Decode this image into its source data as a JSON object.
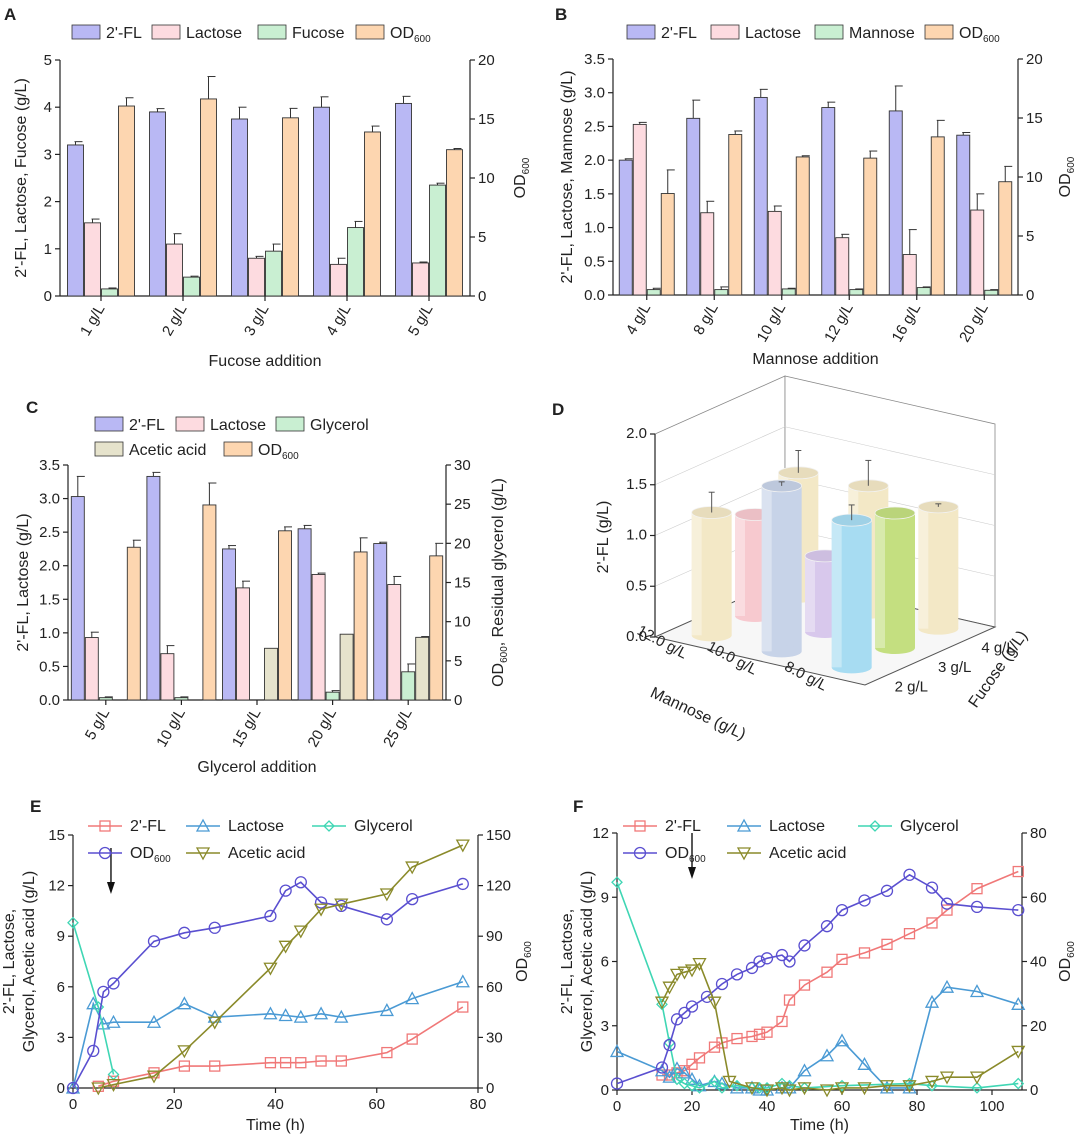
{
  "chart_data": [
    {
      "panel": "A",
      "type": "bar",
      "categories": [
        "1 g/L",
        "2 g/L",
        "3 g/L",
        "4 g/L",
        "5 g/L"
      ],
      "xlabel": "Fucose addition",
      "ylabel": "2'-FL, Lactose, Fucose (g/L)",
      "ylabel_right_main": "OD",
      "ylabel_right_sub": "600",
      "ylim": [
        0,
        5
      ],
      "yticks": [
        0,
        1,
        2,
        3,
        4,
        5
      ],
      "y2lim": [
        0,
        20
      ],
      "y2ticks": [
        0,
        5,
        10,
        15,
        20
      ],
      "series": [
        {
          "name": "2'-FL",
          "color": "#b9b8f4",
          "axis": "left",
          "values": [
            3.2,
            3.9,
            3.75,
            4.0,
            4.08
          ],
          "errors": [
            0.07,
            0.07,
            0.25,
            0.22,
            0.15
          ]
        },
        {
          "name": "Lactose",
          "color": "#fddbe0",
          "axis": "left",
          "values": [
            1.55,
            1.1,
            0.8,
            0.67,
            0.7
          ],
          "errors": [
            0.08,
            0.22,
            0.04,
            0.13,
            0.02
          ]
        },
        {
          "name": "Fucose",
          "color": "#c9efd2",
          "axis": "left",
          "values": [
            0.15,
            0.4,
            0.95,
            1.45,
            2.35
          ],
          "errors": [
            0.02,
            0.02,
            0.15,
            0.13,
            0.04
          ]
        },
        {
          "name": "OD",
          "sub": "600",
          "color": "#fdd6b0",
          "axis": "right",
          "values": [
            16.1,
            16.7,
            15.1,
            13.9,
            12.4
          ],
          "errors": [
            0.7,
            1.9,
            0.8,
            0.5,
            0.1
          ]
        }
      ]
    },
    {
      "panel": "B",
      "type": "bar",
      "categories": [
        "4 g/L",
        "8 g/L",
        "10 g/L",
        "12 g/L",
        "16 g/L",
        "20 g/L"
      ],
      "xlabel": "Mannose addition",
      "ylabel": "2'-FL, Lactose, Mannose (g/L)",
      "ylabel_right_main": "OD",
      "ylabel_right_sub": "600",
      "ylim": [
        0,
        3.5
      ],
      "yticks": [
        "0.0",
        "0.5",
        "1.0",
        "1.5",
        "2.0",
        "2.5",
        "3.0",
        "3.5"
      ],
      "y2lim": [
        0,
        20
      ],
      "y2ticks": [
        0,
        5,
        10,
        15,
        20
      ],
      "series": [
        {
          "name": "2'-FL",
          "color": "#b9b8f4",
          "axis": "left",
          "values": [
            2.0,
            2.62,
            2.93,
            2.78,
            2.73,
            2.37
          ],
          "errors": [
            0.02,
            0.27,
            0.12,
            0.08,
            0.37,
            0.04
          ]
        },
        {
          "name": "Lactose",
          "color": "#fddbe0",
          "axis": "left",
          "values": [
            2.53,
            1.22,
            1.24,
            0.85,
            0.6,
            1.26
          ],
          "errors": [
            0.03,
            0.17,
            0.08,
            0.05,
            0.37,
            0.24
          ]
        },
        {
          "name": "Mannose",
          "color": "#c9efd2",
          "axis": "left",
          "values": [
            0.08,
            0.08,
            0.09,
            0.08,
            0.11,
            0.07
          ],
          "errors": [
            0.02,
            0.04,
            0.01,
            0.01,
            0.01,
            0.01
          ]
        },
        {
          "name": "OD",
          "sub": "600",
          "color": "#fdd6b0",
          "axis": "right",
          "values": [
            8.6,
            13.6,
            11.7,
            11.6,
            13.4,
            9.6
          ],
          "errors": [
            2.0,
            0.3,
            0.1,
            0.6,
            1.4,
            1.3
          ]
        }
      ]
    },
    {
      "panel": "C",
      "type": "bar",
      "categories": [
        "5 g/L",
        "10 g/L",
        "15 g/L",
        "20 g/L",
        "25 g/L"
      ],
      "xlabel": "Glycerol addition",
      "ylabel": "2'-FL, Lactose (g/L)",
      "ylabel_right": "OD600, Residual glycerol (g/L)",
      "ylabel_right_main": "Residual glycerol (g/L)",
      "ylabel_right_od": "OD",
      "ylabel_right_sub": "600",
      "ylabel_right_comma": ",",
      "ylim": [
        0,
        3.5
      ],
      "yticks": [
        "0.0",
        "0.5",
        "1.0",
        "1.5",
        "2.0",
        "2.5",
        "3.0",
        "3.5"
      ],
      "y2lim": [
        0,
        30
      ],
      "y2ticks": [
        0,
        5,
        10,
        15,
        20,
        25,
        30
      ],
      "series": [
        {
          "name": "2'-FL",
          "color": "#b9b8f4",
          "axis": "left",
          "values": [
            3.03,
            3.33,
            2.25,
            2.55,
            2.33
          ],
          "errors": [
            0.3,
            0.06,
            0.05,
            0.05,
            0.02
          ]
        },
        {
          "name": "Lactose",
          "color": "#fddbe0",
          "axis": "left",
          "values": [
            0.93,
            0.69,
            1.67,
            1.87,
            1.72
          ],
          "errors": [
            0.08,
            0.12,
            0.1,
            0.02,
            0.12
          ]
        },
        {
          "name": "Glycerol",
          "color": "#c9efd2",
          "axis": "right",
          "values": [
            0.3,
            0.3,
            0,
            1.0,
            3.6
          ],
          "errors": [
            0.1,
            0.1,
            0,
            0.2,
            1.0
          ]
        },
        {
          "name": "Acetic acid",
          "color": "#e6e3cc",
          "axis": "right",
          "values": [
            0,
            0,
            6.6,
            8.4,
            8.0
          ],
          "errors": [
            0,
            0,
            0,
            0,
            0.1
          ]
        },
        {
          "name": "OD",
          "sub": "600",
          "color": "#fdd6b0",
          "axis": "right",
          "values": [
            19.5,
            24.9,
            21.6,
            18.9,
            18.4
          ],
          "errors": [
            0.9,
            2.8,
            0.5,
            1.8,
            1.6
          ]
        }
      ]
    },
    {
      "panel": "D",
      "type": "bar3d",
      "zlabel": "2'-FL (g/L)",
      "zticks": [
        "0.0",
        "0.5",
        "1.0",
        "1.5",
        "2.0"
      ],
      "mannose_label": "Mannose (g/L)",
      "mannose_ticks": [
        "12.0 g/L",
        "10.0 g/L",
        "8.0 g/L"
      ],
      "fucose_label": "Fucose (g/L)",
      "fucose_ticks": [
        "2 g/L",
        "3 g/L",
        "4 g/L"
      ],
      "bars": [
        {
          "mannose": "12.0 g/L",
          "fucose": "4 g/L",
          "value": 1.22,
          "error": 0.22,
          "color": "#f3e8c6"
        },
        {
          "mannose": "12.0 g/L",
          "fucose": "3 g/L",
          "value": 1.0,
          "error": 0,
          "color": "#f7c9cf"
        },
        {
          "mannose": "12.0 g/L",
          "fucose": "2 g/L",
          "value": 1.21,
          "error": 0.2,
          "color": "#f3e8c6"
        },
        {
          "mannose": "10.0 g/L",
          "fucose": "4 g/L",
          "value": 1.25,
          "error": 0.25,
          "color": "#f3e8c6"
        },
        {
          "mannose": "10.0 g/L",
          "fucose": "3 g/L",
          "value": 0.75,
          "error": 0,
          "color": "#d8c8ec"
        },
        {
          "mannose": "10.0 g/L",
          "fucose": "2 g/L",
          "value": 1.63,
          "error": 0.04,
          "color": "#c7d3e8"
        },
        {
          "mannose": "8.0 g/L",
          "fucose": "4 g/L",
          "value": 1.2,
          "error": 0.03,
          "color": "#f3e8c6"
        },
        {
          "mannose": "8.0 g/L",
          "fucose": "3 g/L",
          "value": 1.33,
          "error": 0,
          "color": "#c4df80"
        },
        {
          "mannose": "8.0 g/L",
          "fucose": "2 g/L",
          "value": 1.45,
          "error": 0.15,
          "color": "#a7dcf2"
        }
      ]
    },
    {
      "panel": "E",
      "type": "line",
      "xlabel": "Time (h)",
      "ylabel_line1": "2'-FL, Lactose,",
      "ylabel_line2": "Glycerol, Acetic acid (g/L)",
      "ylabel_right_main": "OD",
      "ylabel_right_sub": "600",
      "xlim": [
        0,
        80
      ],
      "xticks": [
        0,
        20,
        40,
        60,
        80
      ],
      "ylim": [
        0,
        15
      ],
      "yticks": [
        0,
        3,
        6,
        9,
        12,
        15
      ],
      "y2lim": [
        0,
        150
      ],
      "y2ticks": [
        0,
        30,
        60,
        90,
        120,
        150
      ],
      "arrow_x": 7.5,
      "series": [
        {
          "name": "2'-FL",
          "color": "#f07878",
          "marker": "square",
          "axis": "left",
          "x": [
            5,
            8,
            16,
            22,
            28,
            39,
            42,
            45,
            49,
            53,
            62,
            67,
            77
          ],
          "y": [
            0.1,
            0.4,
            0.9,
            1.3,
            1.3,
            1.5,
            1.5,
            1.5,
            1.6,
            1.6,
            2.1,
            2.9,
            4.8
          ]
        },
        {
          "name": "Lactose",
          "color": "#4a9ad4",
          "marker": "triangle",
          "axis": "left",
          "x": [
            0,
            4,
            6,
            8,
            16,
            22,
            28,
            39,
            42,
            45,
            49,
            53,
            62,
            67,
            77
          ],
          "y": [
            0,
            5.0,
            3.8,
            3.9,
            3.9,
            5.0,
            4.2,
            4.4,
            4.3,
            4.2,
            4.4,
            4.2,
            4.6,
            5.3,
            6.3
          ]
        },
        {
          "name": "Glycerol",
          "color": "#3fd6b4",
          "marker": "diamond",
          "axis": "left",
          "x": [
            0,
            5,
            8
          ],
          "y": [
            9.8,
            4.8,
            0.8
          ]
        },
        {
          "name": "OD",
          "sub": "600",
          "color": "#5a4fd0",
          "marker": "circle",
          "axis": "right",
          "x": [
            0,
            4,
            6,
            8,
            16,
            22,
            28,
            39,
            42,
            45,
            49,
            53,
            62,
            67,
            77
          ],
          "y": [
            0,
            22,
            57,
            62,
            87,
            92,
            95,
            102,
            117,
            122,
            110,
            108,
            100,
            112,
            121
          ]
        },
        {
          "name": "Acetic acid",
          "color": "#8a8a2a",
          "marker": "triangle-down",
          "axis": "left",
          "x": [
            5,
            8,
            16,
            22,
            28,
            39,
            42,
            45,
            49,
            53,
            62,
            67,
            77
          ],
          "y": [
            0,
            0.2,
            0.7,
            2.2,
            3.9,
            7.1,
            8.4,
            9.3,
            10.6,
            10.9,
            11.5,
            13.1,
            14.4
          ]
        }
      ]
    },
    {
      "panel": "F",
      "type": "line",
      "xlabel": "Time (h)",
      "ylabel_line1": "2'-FL, Lactose,",
      "ylabel_line2": "Glycerol, Acetic acid (g/L)",
      "ylabel_right_main": "OD",
      "ylabel_right_sub": "600",
      "xlim": [
        0,
        108
      ],
      "xticks": [
        0,
        20,
        40,
        60,
        80,
        100
      ],
      "ylim": [
        0,
        12
      ],
      "yticks": [
        0,
        3,
        6,
        9,
        12
      ],
      "y2lim": [
        0,
        80
      ],
      "y2ticks": [
        0,
        20,
        40,
        60,
        80
      ],
      "arrow_x": 20,
      "series": [
        {
          "name": "2'-FL",
          "color": "#f07878",
          "marker": "square",
          "axis": "left",
          "x": [
            12,
            14,
            16,
            18,
            20,
            22,
            26,
            28,
            32,
            36,
            38,
            40,
            44,
            46,
            50,
            56,
            60,
            66,
            72,
            78,
            84,
            88,
            96,
            107
          ],
          "y": [
            0.7,
            0.7,
            0.8,
            0.9,
            1.2,
            1.5,
            2.0,
            2.2,
            2.4,
            2.5,
            2.6,
            2.7,
            3.2,
            4.2,
            4.9,
            5.5,
            6.1,
            6.4,
            6.8,
            7.3,
            7.8,
            8.4,
            9.4,
            10.2
          ]
        },
        {
          "name": "Lactose",
          "color": "#4a9ad4",
          "marker": "triangle",
          "axis": "left",
          "x": [
            0,
            12,
            14,
            16,
            18,
            20,
            22,
            26,
            28,
            32,
            36,
            38,
            40,
            44,
            46,
            50,
            56,
            60,
            66,
            72,
            78,
            84,
            88,
            96,
            107
          ],
          "y": [
            1.8,
            0.9,
            0.6,
            1.0,
            0.8,
            0.5,
            0.2,
            0.4,
            0.3,
            0.1,
            0.1,
            0.0,
            0.0,
            0.1,
            0.1,
            0.9,
            1.6,
            2.3,
            1.2,
            0.1,
            0.1,
            4.1,
            4.8,
            4.6,
            4.0
          ]
        },
        {
          "name": "Glycerol",
          "color": "#3fd6b4",
          "marker": "diamond",
          "axis": "left",
          "x": [
            0,
            12,
            14,
            16,
            18,
            20,
            22,
            26,
            28,
            32,
            36,
            38,
            40,
            44,
            46,
            50,
            60,
            78,
            84,
            96,
            107
          ],
          "y": [
            9.7,
            4.0,
            2.2,
            0.5,
            0.3,
            0.2,
            0.1,
            0.4,
            0.1,
            0.2,
            0.1,
            0.1,
            0.1,
            0.3,
            0.2,
            0.1,
            0.2,
            0.3,
            0.2,
            0.1,
            0.3
          ]
        },
        {
          "name": "OD",
          "sub": "600",
          "color": "#5a4fd0",
          "marker": "circle",
          "axis": "right",
          "x": [
            0,
            12,
            14,
            16,
            18,
            20,
            24,
            28,
            32,
            36,
            38,
            40,
            44,
            46,
            50,
            56,
            60,
            66,
            72,
            78,
            84,
            88,
            96,
            107
          ],
          "y": [
            2,
            7,
            14,
            22,
            24,
            26,
            29,
            33,
            36,
            38,
            40,
            41,
            42,
            40,
            45,
            51,
            56,
            59,
            62,
            67,
            63,
            58,
            57,
            56
          ]
        },
        {
          "name": "Acetic acid",
          "color": "#8a8a2a",
          "marker": "triangle-down",
          "axis": "left",
          "x": [
            12,
            14,
            16,
            18,
            20,
            22,
            26,
            30,
            36,
            40,
            44,
            46,
            50,
            56,
            60,
            66,
            72,
            78,
            84,
            88,
            96,
            107
          ],
          "y": [
            4.1,
            4.8,
            5.4,
            5.5,
            5.6,
            5.9,
            4.1,
            0.4,
            0.1,
            0.0,
            0.1,
            0.0,
            0.1,
            0.0,
            0.1,
            0.1,
            0.2,
            0.2,
            0.4,
            0.6,
            0.6,
            1.8
          ]
        }
      ]
    }
  ]
}
